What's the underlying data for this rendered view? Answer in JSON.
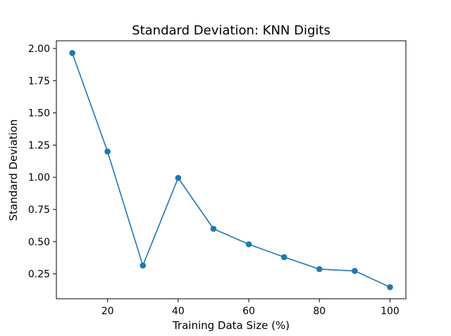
{
  "chart_data": {
    "type": "line",
    "title": "Standard Deviation: KNN Digits",
    "xlabel": "Training Data Size (%)",
    "ylabel": "Standard Deviation",
    "xlim": [
      5.5,
      104.5
    ],
    "ylim": [
      0.057,
      2.06
    ],
    "xticks": [
      20,
      40,
      60,
      80,
      100
    ],
    "xtick_labels": [
      "20",
      "40",
      "60",
      "80",
      "100"
    ],
    "yticks": [
      0.25,
      0.5,
      0.75,
      1.0,
      1.25,
      1.5,
      1.75,
      2.0
    ],
    "ytick_labels": [
      "0.25",
      "0.50",
      "0.75",
      "1.00",
      "1.25",
      "1.50",
      "1.75",
      "2.00"
    ],
    "grid": false,
    "series": [
      {
        "color": "#1f77b4",
        "marker": "circle",
        "x": [
          10,
          20,
          30,
          40,
          50,
          60,
          70,
          80,
          90,
          100
        ],
        "y": [
          1.965,
          1.2,
          0.315,
          0.995,
          0.6,
          0.48,
          0.38,
          0.287,
          0.273,
          0.147
        ]
      }
    ]
  }
}
